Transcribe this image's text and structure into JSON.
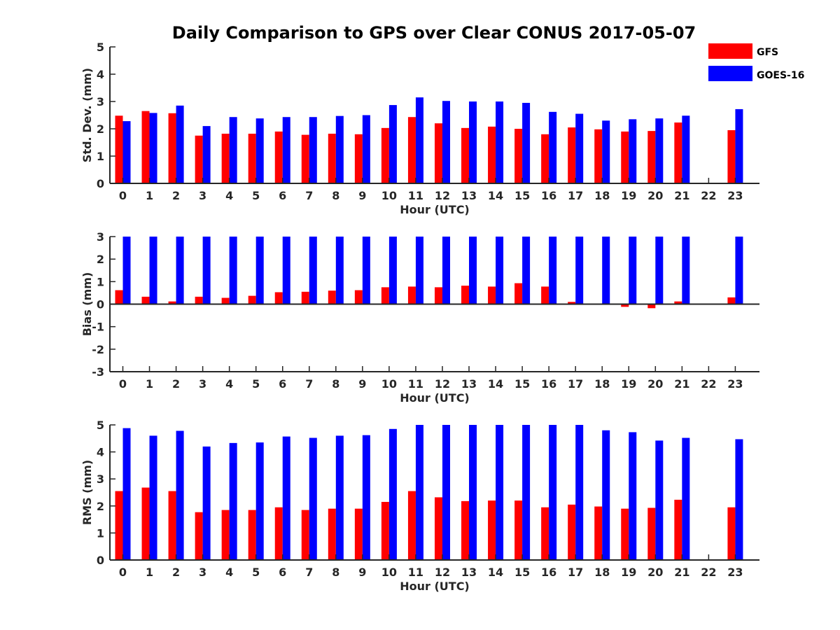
{
  "figure": {
    "title": "Daily Comparison to GPS over Clear CONUS 2017-05-07",
    "legend": {
      "placement": "top-right",
      "entries": [
        {
          "name": "GFS",
          "color": "#ff0000"
        },
        {
          "name": "GOES-16",
          "color": "#0000ff"
        }
      ]
    }
  },
  "chart_data": [
    {
      "type": "bar",
      "title": "Daily Comparison to GPS over Clear CONUS 2017-05-07",
      "xlabel": "Hour (UTC)",
      "ylabel": "Std. Dev. (mm)",
      "ylim": [
        0,
        5
      ],
      "yticks": [
        0,
        1,
        2,
        3,
        4,
        5
      ],
      "categories": [
        "0",
        "1",
        "2",
        "3",
        "4",
        "5",
        "6",
        "7",
        "8",
        "9",
        "10",
        "11",
        "12",
        "13",
        "14",
        "15",
        "16",
        "17",
        "18",
        "19",
        "20",
        "21",
        "22",
        "23"
      ],
      "series": [
        {
          "name": "GFS",
          "color": "#ff0000",
          "values": [
            2.48,
            2.65,
            2.57,
            1.75,
            1.82,
            1.82,
            1.9,
            1.78,
            1.82,
            1.8,
            2.03,
            2.43,
            2.2,
            2.03,
            2.08,
            2.0,
            1.8,
            2.05,
            1.98,
            1.9,
            1.92,
            2.23,
            null,
            1.95
          ]
        },
        {
          "name": "GOES-16",
          "color": "#0000ff",
          "values": [
            2.28,
            2.58,
            2.85,
            2.1,
            2.43,
            2.38,
            2.43,
            2.43,
            2.47,
            2.5,
            2.87,
            3.15,
            3.02,
            3.0,
            3.0,
            2.95,
            2.62,
            2.55,
            2.3,
            2.35,
            2.38,
            2.48,
            null,
            2.72
          ]
        }
      ]
    },
    {
      "type": "bar",
      "xlabel": "Hour (UTC)",
      "ylabel": "Bias (mm)",
      "ylim": [
        -3,
        3
      ],
      "yticks": [
        -3,
        -2,
        -1,
        0,
        1,
        2,
        3
      ],
      "categories": [
        "0",
        "1",
        "2",
        "3",
        "4",
        "5",
        "6",
        "7",
        "8",
        "9",
        "10",
        "11",
        "12",
        "13",
        "14",
        "15",
        "16",
        "17",
        "18",
        "19",
        "20",
        "21",
        "22",
        "23"
      ],
      "series": [
        {
          "name": "GFS",
          "color": "#ff0000",
          "values": [
            0.62,
            0.33,
            0.12,
            0.33,
            0.28,
            0.37,
            0.53,
            0.55,
            0.6,
            0.62,
            0.75,
            0.78,
            0.75,
            0.82,
            0.78,
            0.93,
            0.78,
            0.1,
            0.0,
            -0.12,
            -0.18,
            0.12,
            null,
            0.3
          ]
        },
        {
          "name": "GOES-16",
          "color": "#0000ff",
          "values": [
            3.2,
            3.2,
            3.2,
            3.2,
            3.2,
            3.2,
            3.2,
            3.2,
            3.2,
            3.2,
            3.2,
            3.2,
            3.2,
            3.2,
            3.2,
            3.2,
            3.2,
            3.2,
            3.2,
            3.2,
            3.2,
            3.2,
            null,
            3.2
          ]
        }
      ]
    },
    {
      "type": "bar",
      "xlabel": "Hour (UTC)",
      "ylabel": "RMS (mm)",
      "ylim": [
        0,
        5
      ],
      "yticks": [
        0,
        1,
        2,
        3,
        4,
        5
      ],
      "categories": [
        "0",
        "1",
        "2",
        "3",
        "4",
        "5",
        "6",
        "7",
        "8",
        "9",
        "10",
        "11",
        "12",
        "13",
        "14",
        "15",
        "16",
        "17",
        "18",
        "19",
        "20",
        "21",
        "22",
        "23"
      ],
      "series": [
        {
          "name": "GFS",
          "color": "#ff0000",
          "values": [
            2.55,
            2.68,
            2.55,
            1.77,
            1.85,
            1.85,
            1.95,
            1.85,
            1.9,
            1.9,
            2.15,
            2.55,
            2.32,
            2.18,
            2.2,
            2.2,
            1.95,
            2.05,
            1.98,
            1.9,
            1.93,
            2.23,
            null,
            1.95
          ]
        },
        {
          "name": "GOES-16",
          "color": "#0000ff",
          "values": [
            4.88,
            4.6,
            4.78,
            4.2,
            4.33,
            4.35,
            4.57,
            4.52,
            4.6,
            4.62,
            4.85,
            5.2,
            5.2,
            5.2,
            5.2,
            5.2,
            5.2,
            5.2,
            4.8,
            4.73,
            4.42,
            4.52,
            null,
            4.47
          ]
        }
      ]
    }
  ]
}
